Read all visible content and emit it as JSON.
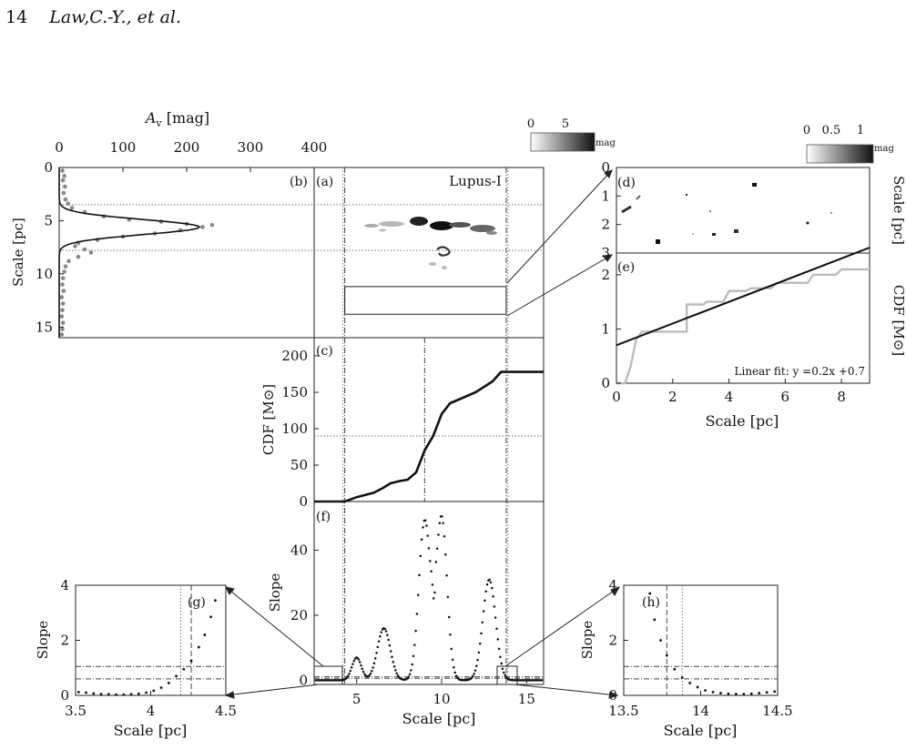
{
  "page": {
    "number": "14",
    "running_head": "Law,C.-Y., et al."
  },
  "colorbars": {
    "left": {
      "ticks": [
        "0",
        "5"
      ],
      "unit": "mag"
    },
    "right": {
      "ticks": [
        "0",
        "0.5",
        "1"
      ],
      "unit": "mag"
    }
  },
  "panel_labels": {
    "a": "(a)",
    "b": "(b)",
    "c": "(c)",
    "d": "(d)",
    "e": "(e)",
    "f": "(f)",
    "g": "(g)",
    "h": "(h)"
  },
  "chart_data": [
    {
      "id": "b",
      "type": "scatter",
      "xlabel_pre": "A",
      "xlabel_sub": "v",
      "xlabel_post": " [mag]",
      "ylabel": "Scale [pc]",
      "xlim": [
        0,
        400
      ],
      "ylim": [
        0,
        16
      ],
      "xticks": [
        "0",
        "100",
        "200",
        "300",
        "400"
      ],
      "yticks": [
        "0",
        "5",
        "10",
        "15"
      ],
      "gauss_fit": {
        "amplitude": 220,
        "center": 5.6,
        "sigma": 0.7
      },
      "hlines": [
        3.5,
        7.8
      ],
      "points": [
        [
          5,
          0.3
        ],
        [
          8,
          0.8
        ],
        [
          6,
          1.2
        ],
        [
          9,
          1.8
        ],
        [
          7,
          2.4
        ],
        [
          10,
          3.0
        ],
        [
          14,
          3.4
        ],
        [
          20,
          3.8
        ],
        [
          40,
          4.2
        ],
        [
          70,
          4.6
        ],
        [
          110,
          4.9
        ],
        [
          160,
          5.1
        ],
        [
          200,
          5.3
        ],
        [
          240,
          5.4
        ],
        [
          225,
          5.6
        ],
        [
          190,
          5.9
        ],
        [
          150,
          6.2
        ],
        [
          100,
          6.5
        ],
        [
          60,
          6.8
        ],
        [
          30,
          7.1
        ],
        [
          25,
          7.4
        ],
        [
          40,
          7.7
        ],
        [
          50,
          8.0
        ],
        [
          30,
          8.4
        ],
        [
          15,
          8.8
        ],
        [
          10,
          9.3
        ],
        [
          8,
          9.8
        ],
        [
          6,
          10.4
        ],
        [
          5,
          11.0
        ],
        [
          7,
          11.6
        ],
        [
          4,
          12.2
        ],
        [
          6,
          12.8
        ],
        [
          5,
          13.4
        ],
        [
          4,
          14.0
        ],
        [
          6,
          14.6
        ],
        [
          5,
          15.2
        ],
        [
          4,
          15.7
        ]
      ]
    },
    {
      "id": "a",
      "type": "heatmap",
      "title": "Lupus-I",
      "xlim": [
        2.5,
        16
      ],
      "ylim": [
        0,
        16
      ],
      "vlines_dashdot": [
        4.3,
        13.8
      ],
      "vlines_dotted": [
        4.2,
        13.9
      ],
      "hlines": [
        3.5,
        7.8
      ],
      "box": {
        "x": [
          4.3,
          13.8
        ],
        "y": [
          11.2,
          13.8
        ]
      }
    },
    {
      "id": "c",
      "type": "line",
      "ylabel": "CDF [M⊙]",
      "xlim": [
        2.5,
        16
      ],
      "ylim": [
        0,
        225
      ],
      "yticks": [
        "0",
        "50",
        "100",
        "150",
        "200"
      ],
      "x": [
        2.5,
        4.3,
        5.0,
        6.0,
        6.5,
        7.0,
        7.5,
        8.0,
        8.5,
        9.0,
        9.5,
        10.0,
        10.5,
        11.0,
        12.0,
        13.0,
        13.5,
        16.0
      ],
      "y": [
        0,
        0,
        6,
        12,
        18,
        25,
        28,
        30,
        40,
        70,
        90,
        120,
        135,
        140,
        150,
        165,
        178,
        178
      ],
      "hline_dotted": 90,
      "vline_dashdot": 9.0
    },
    {
      "id": "d",
      "type": "heatmap",
      "ylabel": "Scale [pc]",
      "ylim": [
        0,
        3
      ],
      "yticks": [
        "0",
        "1",
        "2",
        "3"
      ]
    },
    {
      "id": "e",
      "type": "line",
      "xlabel": "Scale [pc]",
      "ylabel": "CDF [M⊙]",
      "xlim": [
        0,
        9
      ],
      "ylim": [
        0,
        2.4
      ],
      "xticks": [
        "0",
        "2",
        "4",
        "6",
        "8"
      ],
      "yticks": [
        "0",
        "1",
        "2"
      ],
      "annotation": "Linear fit: y =0.2x +0.7",
      "fit": {
        "slope": 0.2,
        "intercept": 0.7
      },
      "x": [
        0,
        0.3,
        0.5,
        0.7,
        0.9,
        2.5,
        2.5,
        3.1,
        3.2,
        3.8,
        4.0,
        4.6,
        4.8,
        5.5,
        5.7,
        6.8,
        7.0,
        7.8,
        8.0,
        9.0
      ],
      "y": [
        0,
        0,
        0.3,
        0.8,
        0.95,
        0.95,
        1.45,
        1.45,
        1.5,
        1.5,
        1.7,
        1.7,
        1.75,
        1.75,
        1.85,
        1.85,
        2.0,
        2.0,
        2.1,
        2.1
      ]
    },
    {
      "id": "f",
      "type": "scatter",
      "xlabel": "Scale [pc]",
      "ylabel": "Slope",
      "xlim": [
        2.5,
        16
      ],
      "ylim": [
        -1,
        55
      ],
      "xticks": [
        "5",
        "10",
        "15"
      ],
      "yticks": [
        "0",
        "20",
        "40"
      ],
      "peaks": [
        [
          5.0,
          7,
          0.28
        ],
        [
          6.6,
          16,
          0.38
        ],
        [
          9.0,
          49,
          0.34
        ],
        [
          10.0,
          50,
          0.32
        ],
        [
          12.8,
          31,
          0.38
        ]
      ],
      "dip_points": [
        [
          9.55,
          24
        ]
      ]
    },
    {
      "id": "g",
      "type": "scatter",
      "xlabel": "Scale [pc]",
      "ylabel": "Slope",
      "xlim": [
        3.5,
        4.5
      ],
      "ylim": [
        0,
        4
      ],
      "xticks": [
        "3.5",
        "4",
        "4.5"
      ],
      "yticks": [
        "0",
        "2",
        "4"
      ],
      "vline_dotted": 4.2,
      "vline_dashed": 4.27,
      "hlines_dashdot": [
        0.6,
        1.05
      ],
      "points": [
        [
          3.52,
          0.12
        ],
        [
          3.57,
          0.1
        ],
        [
          3.62,
          0.07
        ],
        [
          3.67,
          0.05
        ],
        [
          3.72,
          0.04
        ],
        [
          3.77,
          0.03
        ],
        [
          3.82,
          0.03
        ],
        [
          3.87,
          0.04
        ],
        [
          3.92,
          0.06
        ],
        [
          3.97,
          0.1
        ],
        [
          4.02,
          0.17
        ],
        [
          4.07,
          0.28
        ],
        [
          4.12,
          0.45
        ],
        [
          4.17,
          0.7
        ],
        [
          4.22,
          0.95
        ],
        [
          4.27,
          1.25
        ],
        [
          4.32,
          1.75
        ],
        [
          4.36,
          2.2
        ],
        [
          4.4,
          2.85
        ],
        [
          4.43,
          3.45
        ]
      ]
    },
    {
      "id": "h",
      "type": "scatter",
      "xlabel": "Scale [pc]",
      "ylabel": "Slope",
      "xlim": [
        13.5,
        14.5
      ],
      "ylim": [
        0,
        4
      ],
      "xticks": [
        "13.5",
        "14",
        "14.5"
      ],
      "yticks": [
        "0",
        "2",
        "4"
      ],
      "vline_dashed": 13.78,
      "vline_dotted": 13.88,
      "hlines_dashdot": [
        0.6,
        1.05
      ],
      "points": [
        [
          13.67,
          3.7
        ],
        [
          13.7,
          2.75
        ],
        [
          13.74,
          2.0
        ],
        [
          13.78,
          1.45
        ],
        [
          13.83,
          0.95
        ],
        [
          13.88,
          0.65
        ],
        [
          13.93,
          0.45
        ],
        [
          13.98,
          0.3
        ],
        [
          14.03,
          0.18
        ],
        [
          14.08,
          0.12
        ],
        [
          14.13,
          0.08
        ],
        [
          14.18,
          0.06
        ],
        [
          14.23,
          0.05
        ],
        [
          14.28,
          0.05
        ],
        [
          14.33,
          0.06
        ],
        [
          14.38,
          0.08
        ],
        [
          14.43,
          0.11
        ],
        [
          14.48,
          0.14
        ]
      ]
    }
  ]
}
